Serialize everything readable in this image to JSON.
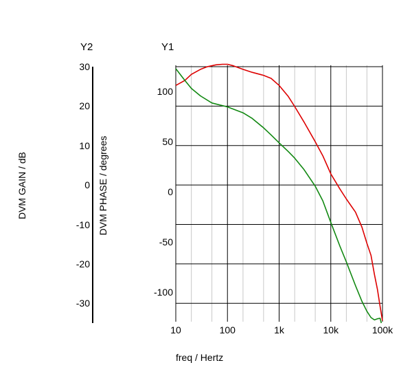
{
  "chart_data": {
    "type": "line",
    "title": "",
    "xlabel": "freq / Hertz",
    "x_scale": "log",
    "xlim": [
      10,
      100000
    ],
    "x_ticks": [
      10,
      100,
      1000,
      10000,
      100000
    ],
    "x_tick_labels": [
      "10",
      "100",
      "1k",
      "10k",
      "100k"
    ],
    "grid": true,
    "axes": {
      "y1": {
        "label": "Y1",
        "ylim": [
          -125,
          130
        ],
        "ticks": [
          100,
          50,
          0,
          -50,
          -100
        ],
        "tick_labels": [
          "100",
          "50",
          "0",
          "-50",
          "-100"
        ]
      },
      "y2": {
        "label": "Y2",
        "ylim": [
          -35,
          30
        ],
        "ticks": [
          30,
          20,
          10,
          0,
          -10,
          -20,
          -30
        ],
        "tick_labels": [
          "30",
          "20",
          "10",
          "0",
          "-10",
          "-20",
          "-30"
        ]
      }
    },
    "ylabel_gain": "DVM GAIN / dB",
    "ylabel_phase": "DVM PHASE / degrees",
    "series": [
      {
        "color": "#dd0000",
        "axis": "y1",
        "points": [
          [
            10,
            110
          ],
          [
            15,
            115
          ],
          [
            20,
            121
          ],
          [
            30,
            126
          ],
          [
            40,
            128.5
          ],
          [
            60,
            130.5
          ],
          [
            80,
            131
          ],
          [
            100,
            131
          ],
          [
            130,
            129.5
          ],
          [
            200,
            126
          ],
          [
            300,
            123
          ],
          [
            500,
            120
          ],
          [
            700,
            117
          ],
          [
            1000,
            110
          ],
          [
            1500,
            99
          ],
          [
            2000,
            89
          ],
          [
            3000,
            74
          ],
          [
            5000,
            54
          ],
          [
            7000,
            40
          ],
          [
            10000,
            22
          ],
          [
            15000,
            7
          ],
          [
            20000,
            -3
          ],
          [
            30000,
            -16
          ],
          [
            40000,
            -31
          ],
          [
            50000,
            -47
          ],
          [
            60000,
            -59
          ],
          [
            70000,
            -78
          ],
          [
            80000,
            -93
          ],
          [
            90000,
            -110
          ],
          [
            100000,
            -124
          ]
        ]
      },
      {
        "color": "#118811",
        "axis": "y2",
        "points": [
          [
            10,
            29.5
          ],
          [
            15,
            26.5
          ],
          [
            20,
            24.5
          ],
          [
            30,
            22.6
          ],
          [
            50,
            20.8
          ],
          [
            100,
            19.8
          ],
          [
            200,
            18.3
          ],
          [
            300,
            16.9
          ],
          [
            500,
            14.5
          ],
          [
            700,
            12.7
          ],
          [
            1000,
            10.7
          ],
          [
            1500,
            8.5
          ],
          [
            2000,
            6.8
          ],
          [
            3000,
            4
          ],
          [
            5000,
            -0.3
          ],
          [
            7000,
            -4
          ],
          [
            10000,
            -9.5
          ],
          [
            15000,
            -15.5
          ],
          [
            20000,
            -19.5
          ],
          [
            30000,
            -25.5
          ],
          [
            40000,
            -29.5
          ],
          [
            50000,
            -32
          ],
          [
            60000,
            -33.6
          ],
          [
            70000,
            -34.2
          ],
          [
            80000,
            -33.9
          ],
          [
            90000,
            -33.8
          ],
          [
            95000,
            -35
          ]
        ]
      }
    ]
  }
}
